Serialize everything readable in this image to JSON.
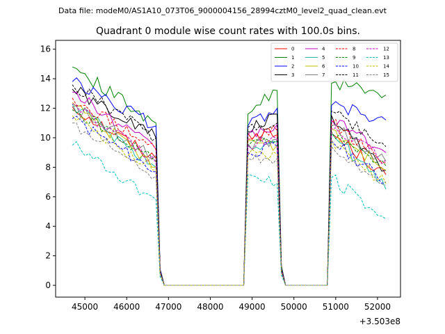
{
  "chart_data": {
    "type": "line",
    "suptitle": "Data file: modeM0/AS1A10_073T06_9000004156_28994cztM0_level2_quad_clean.evt",
    "title": "Quadrant 0 module wise count rates with 100.0s bins.",
    "xlabel": "",
    "ylabel": "",
    "x_offset_label": "+3.503e8",
    "xlim": [
      44300,
      52550
    ],
    "ylim": [
      -0.8,
      16.6
    ],
    "xticks": [
      45000,
      46000,
      47000,
      48000,
      49000,
      50000,
      51000,
      52000
    ],
    "xtick_labels": [
      "45000",
      "46000",
      "47000",
      "48000",
      "49000",
      "50000",
      "51000",
      "52000"
    ],
    "yticks": [
      0,
      2,
      4,
      6,
      8,
      10,
      12,
      14,
      16
    ],
    "ytick_labels": [
      "0",
      "2",
      "4",
      "6",
      "8",
      "10",
      "12",
      "14",
      "16"
    ],
    "legend_position": "upper right",
    "segments": [
      {
        "start": 44700,
        "end": 46700
      },
      {
        "start": 48900,
        "end": 49600
      },
      {
        "start": 50900,
        "end": 52200
      }
    ],
    "series": [
      {
        "name": "0",
        "color": "#ff0000",
        "dash": "solid",
        "seg_start": [
          12.1,
          10.3,
          10.3
        ],
        "seg_end": [
          8.6,
          10.2,
          7.5
        ]
      },
      {
        "name": "1",
        "color": "#008000",
        "dash": "solid",
        "seg_start": [
          14.8,
          11.6,
          13.7
        ],
        "seg_end": [
          11.0,
          13.2,
          12.9
        ]
      },
      {
        "name": "2",
        "color": "#0000ff",
        "dash": "solid",
        "seg_start": [
          13.8,
          10.8,
          12.2
        ],
        "seg_end": [
          10.8,
          12.0,
          11.2
        ]
      },
      {
        "name": "3",
        "color": "#000000",
        "dash": "solid",
        "seg_start": [
          13.3,
          10.4,
          11.5
        ],
        "seg_end": [
          10.0,
          11.6,
          7.8
        ]
      },
      {
        "name": "4",
        "color": "#bf00bf",
        "dash": "solid",
        "seg_start": [
          13.1,
          10.2,
          11.2
        ],
        "seg_end": [
          9.2,
          10.9,
          9.0
        ]
      },
      {
        "name": "5",
        "color": "#1fb8a0",
        "dash": "solid",
        "seg_start": [
          12.3,
          9.5,
          10.3
        ],
        "seg_end": [
          8.0,
          9.7,
          6.5
        ]
      },
      {
        "name": "6",
        "color": "#bfbf00",
        "dash": "solid",
        "seg_start": [
          12.4,
          9.8,
          10.6
        ],
        "seg_end": [
          8.0,
          9.5,
          7.8
        ]
      },
      {
        "name": "7",
        "color": "#808080",
        "dash": "solid",
        "seg_start": [
          12.1,
          9.6,
          10.8
        ],
        "seg_end": [
          8.8,
          9.9,
          8.4
        ]
      },
      {
        "name": "8",
        "color": "#ff0000",
        "dash": "dashed",
        "seg_start": [
          12.7,
          9.9,
          11.0
        ],
        "seg_end": [
          9.2,
          10.5,
          8.3
        ]
      },
      {
        "name": "9",
        "color": "#008000",
        "dash": "dashed",
        "seg_start": [
          11.9,
          9.4,
          10.4
        ],
        "seg_end": [
          8.4,
          9.8,
          8.1
        ]
      },
      {
        "name": "10",
        "color": "#0000ff",
        "dash": "dashed",
        "seg_start": [
          11.3,
          9.0,
          9.8
        ],
        "seg_end": [
          7.7,
          9.4,
          7.0
        ]
      },
      {
        "name": "11",
        "color": "#000000",
        "dash": "dashed",
        "seg_start": [
          13.6,
          10.7,
          11.8
        ],
        "seg_end": [
          10.0,
          11.0,
          9.4
        ]
      },
      {
        "name": "12",
        "color": "#bf00bf",
        "dash": "dashed",
        "seg_start": [
          12.3,
          9.5,
          10.6
        ],
        "seg_end": [
          8.3,
          9.9,
          8.5
        ]
      },
      {
        "name": "13",
        "color": "#00bfbf",
        "dash": "dashed",
        "seg_start": [
          9.5,
          7.5,
          7.3
        ],
        "seg_end": [
          5.8,
          6.9,
          4.5
        ]
      },
      {
        "name": "14",
        "color": "#bfbf00",
        "dash": "dashed",
        "seg_start": [
          11.5,
          8.8,
          9.8
        ],
        "seg_end": [
          7.8,
          8.9,
          6.9
        ]
      },
      {
        "name": "15",
        "color": "#808080",
        "dash": "dashed",
        "seg_start": [
          11.0,
          8.6,
          9.4
        ],
        "seg_end": [
          7.4,
          8.6,
          6.8
        ]
      }
    ]
  }
}
